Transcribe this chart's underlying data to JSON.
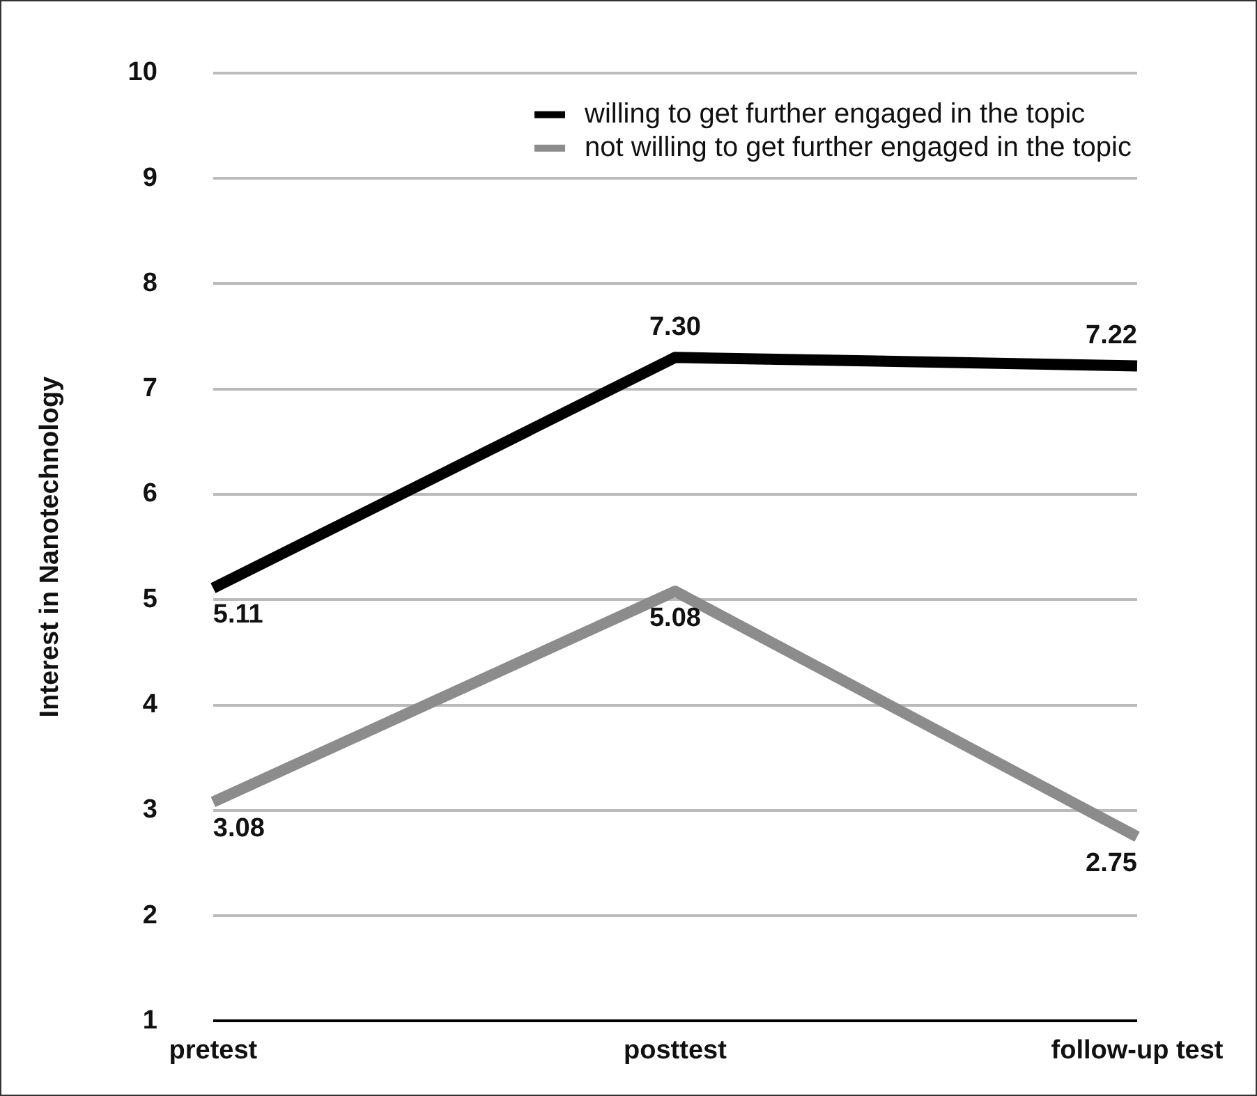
{
  "chart_data": {
    "type": "line",
    "ylabel": "Interest in Nanotechnology",
    "categories": [
      "pretest",
      "posttest",
      "follow-up test"
    ],
    "series": [
      {
        "name": "willing to get further engaged in the topic",
        "color": "#000000",
        "values": [
          5.11,
          7.3,
          7.22
        ],
        "value_labels": [
          "5.11",
          "7.30",
          "7.22"
        ]
      },
      {
        "name": "not willing to get further engaged in the topic",
        "color": "#8c8c8c",
        "values": [
          3.08,
          5.08,
          2.75
        ],
        "value_labels": [
          "3.08",
          "5.08",
          "2.75"
        ]
      }
    ],
    "ylim": [
      1,
      10
    ],
    "yticks": [
      1,
      2,
      3,
      4,
      5,
      6,
      7,
      8,
      9,
      10
    ],
    "grid": "y",
    "legend": "top right",
    "marker": "none",
    "line_style": "solid"
  }
}
